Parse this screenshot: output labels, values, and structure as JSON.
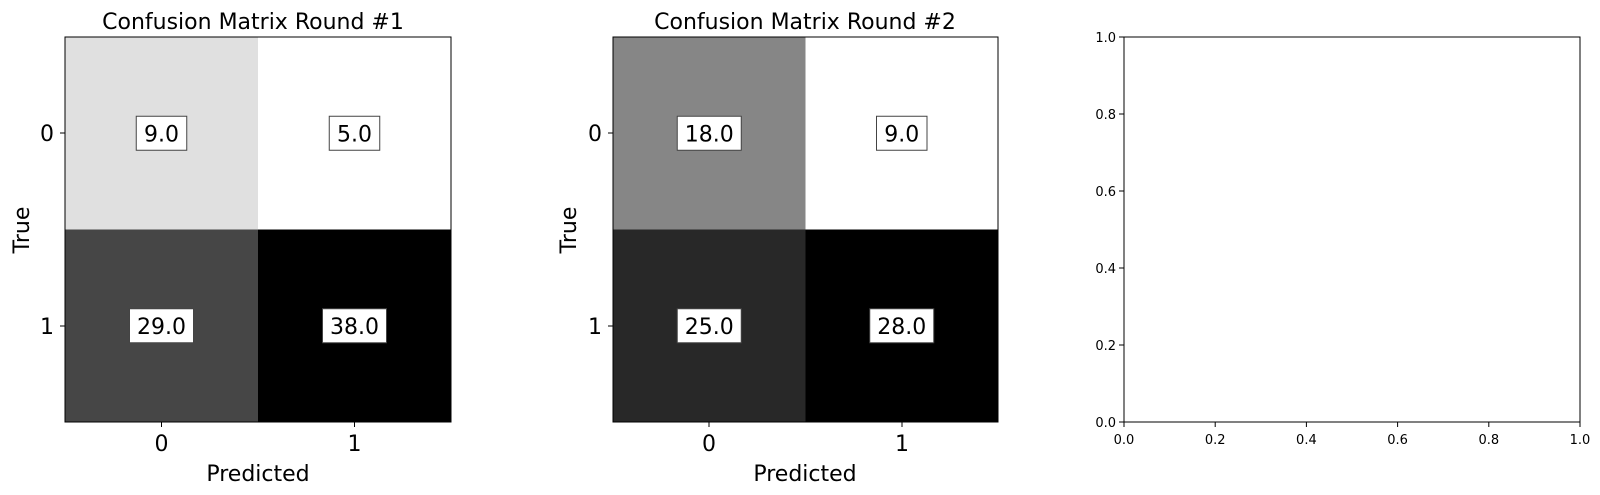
{
  "chart_data": [
    {
      "type": "heatmap",
      "title": "Confusion Matrix Round #1",
      "xlabel": "Predicted",
      "ylabel": "True",
      "x_categories": [
        "0",
        "1"
      ],
      "y_categories": [
        "0",
        "1"
      ],
      "values": [
        [
          9.0,
          5.0
        ],
        [
          29.0,
          38.0
        ]
      ],
      "value_labels": [
        [
          "9.0",
          "5.0"
        ],
        [
          "29.0",
          "38.0"
        ]
      ],
      "colormap": "gray_r"
    },
    {
      "type": "heatmap",
      "title": "Confusion Matrix Round #2",
      "xlabel": "Predicted",
      "ylabel": "True",
      "x_categories": [
        "0",
        "1"
      ],
      "y_categories": [
        "0",
        "1"
      ],
      "values": [
        [
          18.0,
          9.0
        ],
        [
          25.0,
          28.0
        ]
      ],
      "value_labels": [
        [
          "18.0",
          "9.0"
        ],
        [
          "25.0",
          "28.0"
        ]
      ],
      "colormap": "gray_r"
    },
    {
      "type": "scatter",
      "title": "",
      "xlabel": "",
      "ylabel": "",
      "xlim": [
        0.0,
        1.0
      ],
      "ylim": [
        0.0,
        1.0
      ],
      "x_ticks": [
        "0.0",
        "0.2",
        "0.4",
        "0.6",
        "0.8",
        "1.0"
      ],
      "y_ticks": [
        "0.0",
        "0.2",
        "0.4",
        "0.6",
        "0.8",
        "1.0"
      ],
      "series": []
    }
  ]
}
